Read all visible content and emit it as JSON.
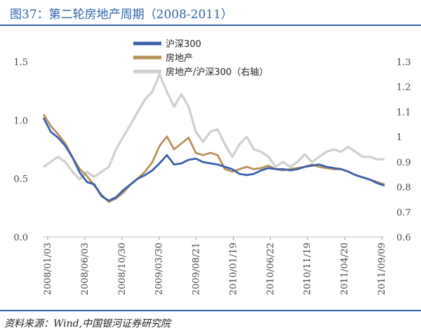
{
  "figure": {
    "title": "图37：第二轮房地产周期（2008-2011）",
    "source": "资料来源：Wind,中国银河证券研究院"
  },
  "chart_data": {
    "type": "line",
    "title": "第二轮房地产周期（2008-2011）",
    "x_ticks": [
      "2008/01/03",
      "2008/06/03",
      "2008/10/30",
      "2009/03/30",
      "2009/08/21",
      "2010/01/19",
      "2010/06/22",
      "2010/11/19",
      "2011/04/20",
      "2011/09/09"
    ],
    "x_domain": [
      0,
      47
    ],
    "left_axis": {
      "ticks": [
        "0.0",
        "0.5",
        "1.0",
        "1.5"
      ],
      "range": [
        0,
        1.5
      ]
    },
    "right_axis": {
      "ticks": [
        "0.6",
        "0.7",
        "0.8",
        "0.9",
        "1",
        "1.1",
        "1.2",
        "1.3"
      ],
      "range": [
        0.6,
        1.3
      ]
    },
    "x": [
      0,
      1,
      2,
      3,
      4,
      5,
      6,
      7,
      8,
      9,
      10,
      11,
      12,
      13,
      14,
      15,
      16,
      17,
      18,
      19,
      20,
      21,
      22,
      23,
      24,
      25,
      26,
      27,
      28,
      29,
      30,
      31,
      32,
      33,
      34,
      35,
      36,
      37,
      38,
      39,
      40,
      41,
      42,
      43,
      44,
      45,
      46,
      47
    ],
    "series": [
      {
        "name": "沪深300",
        "axis": "left",
        "color": "#3a5faa",
        "values": [
          1.02,
          0.9,
          0.85,
          0.78,
          0.68,
          0.55,
          0.47,
          0.45,
          0.35,
          0.31,
          0.34,
          0.4,
          0.45,
          0.5,
          0.53,
          0.57,
          0.63,
          0.7,
          0.62,
          0.63,
          0.66,
          0.67,
          0.64,
          0.63,
          0.62,
          0.6,
          0.58,
          0.54,
          0.53,
          0.54,
          0.57,
          0.59,
          0.58,
          0.58,
          0.57,
          0.58,
          0.6,
          0.61,
          0.62,
          0.6,
          0.59,
          0.58,
          0.56,
          0.53,
          0.51,
          0.49,
          0.46,
          0.44
        ]
      },
      {
        "name": "房地产",
        "axis": "left",
        "color": "#b8915a",
        "values": [
          1.05,
          0.95,
          0.88,
          0.8,
          0.68,
          0.58,
          0.52,
          0.44,
          0.36,
          0.3,
          0.33,
          0.38,
          0.45,
          0.5,
          0.56,
          0.64,
          0.78,
          0.86,
          0.75,
          0.8,
          0.85,
          0.72,
          0.7,
          0.72,
          0.7,
          0.58,
          0.56,
          0.58,
          0.6,
          0.58,
          0.59,
          0.61,
          0.58,
          0.57,
          0.58,
          0.59,
          0.6,
          0.62,
          0.6,
          0.59,
          0.58,
          0.58,
          0.56,
          0.53,
          0.51,
          0.49,
          0.47,
          0.45
        ]
      },
      {
        "name": "房地产/沪深300（右轴）",
        "axis": "right",
        "color": "#cfcfcf",
        "values": [
          0.88,
          0.9,
          0.92,
          0.9,
          0.86,
          0.83,
          0.86,
          0.84,
          0.86,
          0.88,
          0.95,
          1.0,
          1.05,
          1.1,
          1.15,
          1.18,
          1.25,
          1.18,
          1.12,
          1.17,
          1.12,
          1.02,
          0.98,
          1.02,
          1.03,
          0.97,
          0.92,
          0.97,
          1.0,
          0.95,
          0.94,
          0.92,
          0.88,
          0.9,
          0.88,
          0.9,
          0.93,
          0.9,
          0.92,
          0.94,
          0.95,
          0.94,
          0.96,
          0.94,
          0.92,
          0.92,
          0.91,
          0.91
        ]
      }
    ]
  }
}
